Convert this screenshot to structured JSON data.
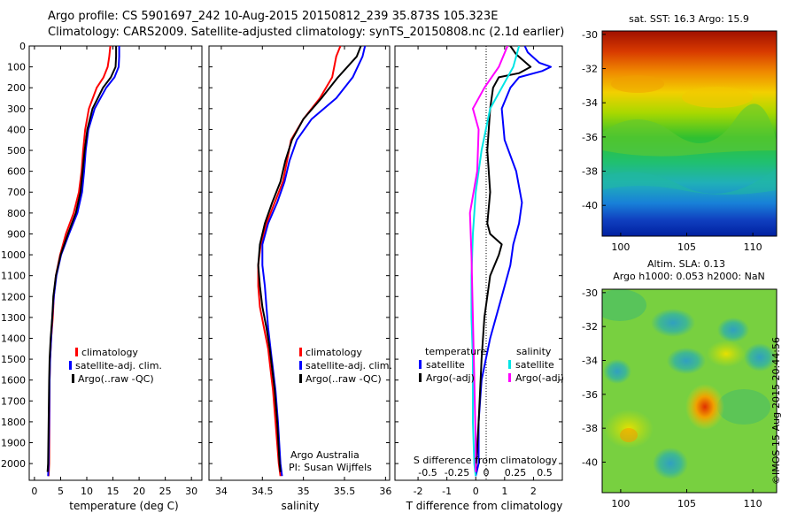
{
  "header": {
    "line1": "Argo profile: CS 5901697_242 10-Aug-2015 20150812_239 35.873S 105.323E",
    "line2": "Climatology: CARS2009. Satellite-adjusted climatology: synTS_20150808.nc (2.1d earlier)"
  },
  "credit": "©IMOS 15-Aug-2015 20:44:56",
  "colors": {
    "climatology": "#ff0000",
    "satellite": "#0000ff",
    "argo": "#000000",
    "sat_s": "#00e5e5",
    "argo_s": "#ff00ff"
  },
  "depth_ticks": [
    "0",
    "100",
    "200",
    "300",
    "400",
    "500",
    "600",
    "700",
    "800",
    "900",
    "1000",
    "1100",
    "1200",
    "1300",
    "1400",
    "1500",
    "1600",
    "1700",
    "1800",
    "1900",
    "2000"
  ],
  "panel_t": {
    "xlabel": "temperature (deg C)",
    "xticks": [
      "0",
      "5",
      "10",
      "15",
      "20",
      "25",
      "30"
    ],
    "legend": [
      "climatology",
      "satellite-adj. clim.",
      "Argo(..raw -QC)"
    ]
  },
  "panel_s": {
    "xlabel": "salinity",
    "xticks": [
      "34",
      "34.5",
      "35",
      "35.5",
      "36"
    ],
    "legend": [
      "climatology",
      "satellite-adj. clim.",
      "Argo(..raw -QC)"
    ],
    "note1": "Argo Australia",
    "note2": "PI: Susan Wijffels"
  },
  "panel_d": {
    "top_xticks": [
      "-0.5",
      "-0.25",
      "0",
      "0.25",
      "0.5"
    ],
    "top_label": "S difference from climatology",
    "xlabel": "T difference from climatology",
    "xticks": [
      "-2",
      "-1",
      "0",
      "1",
      "2"
    ],
    "leg_t_title": "temperature",
    "leg_s_title": "salinity",
    "leg_t": [
      "satellite",
      "Argo(-adj)"
    ],
    "leg_s": [
      "satellite",
      "Argo(-adj)"
    ]
  },
  "map_sst": {
    "title": "sat. SST: 16.3 Argo: 15.9",
    "yticks": [
      "-30",
      "-32",
      "-34",
      "-36",
      "-38",
      "-40"
    ],
    "xticks": [
      "100",
      "105",
      "110"
    ]
  },
  "map_sla": {
    "title1": "Altim. SLA: 0.13",
    "title2": "Argo h1000: 0.053 h2000: NaN",
    "yticks": [
      "-30",
      "-32",
      "-34",
      "-36",
      "-38",
      "-40"
    ],
    "xticks": [
      "100",
      "105",
      "110"
    ]
  },
  "chart_data": [
    {
      "type": "line",
      "ylabel": "",
      "xlabel": "temperature (deg C)",
      "xlim": [
        -1,
        32
      ],
      "ylim": [
        2080,
        0
      ],
      "series": [
        {
          "name": "climatology",
          "color": "#ff0000",
          "x": [
            14.5,
            14.3,
            14.0,
            13.2,
            11.9,
            10.4,
            9.7,
            9.3,
            9.0,
            8.5,
            7.5,
            6.0,
            4.9,
            4.1,
            3.7,
            3.5,
            3.2,
            3.0,
            2.9,
            2.85,
            2.8,
            2.7
          ],
          "y": [
            0,
            50,
            100,
            150,
            200,
            300,
            400,
            500,
            600,
            700,
            800,
            900,
            1000,
            1100,
            1200,
            1300,
            1400,
            1500,
            1600,
            1800,
            2000,
            2060
          ]
        },
        {
          "name": "satellite-adj. clim.",
          "color": "#0000ff",
          "x": [
            16.2,
            16.2,
            16.1,
            15.3,
            13.7,
            11.5,
            10.3,
            9.8,
            9.5,
            9.1,
            8.2,
            6.6,
            5.1,
            4.2,
            3.7,
            3.4,
            3.2,
            3.0,
            2.9,
            2.8,
            2.7,
            2.6
          ],
          "y": [
            0,
            50,
            100,
            150,
            200,
            300,
            400,
            500,
            600,
            700,
            800,
            900,
            1000,
            1100,
            1200,
            1300,
            1400,
            1500,
            1600,
            1800,
            2000,
            2060
          ]
        },
        {
          "name": "Argo(..raw -QC)",
          "color": "#000000",
          "x": [
            15.6,
            15.6,
            15.5,
            14.6,
            13.1,
            11.1,
            10.1,
            9.6,
            9.2,
            8.8,
            7.9,
            6.4,
            5.0,
            4.1,
            3.6,
            3.4,
            3.1,
            2.9,
            2.8,
            2.7,
            2.6,
            2.5
          ],
          "y": [
            0,
            50,
            100,
            150,
            200,
            300,
            400,
            500,
            600,
            700,
            800,
            900,
            1000,
            1100,
            1200,
            1300,
            1400,
            1500,
            1600,
            1800,
            2000,
            2040
          ]
        }
      ]
    },
    {
      "type": "line",
      "xlabel": "salinity",
      "xlim": [
        33.85,
        36.05
      ],
      "ylim": [
        2080,
        0
      ],
      "series": [
        {
          "name": "climatology",
          "color": "#ff0000",
          "x": [
            35.45,
            35.4,
            35.35,
            35.2,
            35.0,
            34.85,
            34.8,
            34.75,
            34.65,
            34.55,
            34.48,
            34.45,
            34.45,
            34.47,
            34.52,
            34.57,
            34.6,
            34.63,
            34.66,
            34.7,
            34.72
          ],
          "y": [
            0,
            50,
            150,
            250,
            350,
            450,
            550,
            650,
            750,
            850,
            950,
            1050,
            1150,
            1250,
            1350,
            1450,
            1550,
            1650,
            1800,
            2000,
            2060
          ]
        },
        {
          "name": "satellite-adj. clim.",
          "color": "#0000ff",
          "x": [
            35.75,
            35.72,
            35.6,
            35.4,
            35.1,
            34.92,
            34.83,
            34.77,
            34.68,
            34.57,
            34.5,
            34.5,
            34.53,
            34.55,
            34.57,
            34.6,
            34.63,
            34.66,
            34.69,
            34.72,
            34.74
          ],
          "y": [
            0,
            50,
            150,
            250,
            350,
            450,
            550,
            650,
            750,
            850,
            950,
            1050,
            1150,
            1250,
            1350,
            1450,
            1550,
            1650,
            1800,
            2000,
            2060
          ]
        },
        {
          "name": "Argo(..raw -QC)",
          "color": "#000000",
          "x": [
            35.7,
            35.65,
            35.42,
            35.22,
            35.0,
            34.86,
            34.78,
            34.72,
            34.62,
            34.53,
            34.47,
            34.45,
            34.47,
            34.5,
            34.55,
            34.59,
            34.62,
            34.65,
            34.68,
            34.71,
            34.72
          ],
          "y": [
            0,
            50,
            150,
            250,
            350,
            450,
            550,
            650,
            750,
            850,
            950,
            1050,
            1150,
            1250,
            1350,
            1450,
            1550,
            1650,
            1800,
            2000,
            2040
          ]
        }
      ]
    },
    {
      "type": "line",
      "xlabel": "T difference from climatology",
      "x2label": "S difference from climatology",
      "xlim": [
        -2.8,
        3.0
      ],
      "ylim": [
        2080,
        0
      ],
      "series": [
        {
          "name": "satellite (temperature)",
          "color": "#0000ff",
          "x": [
            1.7,
            1.8,
            2.2,
            2.6,
            2.3,
            1.5,
            1.2,
            0.9,
            1.0,
            1.4,
            1.6,
            1.5,
            1.3,
            1.2,
            0.9,
            0.5,
            0.2,
            0.1,
            0.1,
            0.0
          ],
          "y": [
            0,
            30,
            80,
            100,
            120,
            150,
            200,
            300,
            450,
            600,
            750,
            850,
            950,
            1050,
            1200,
            1400,
            1600,
            1800,
            2000,
            2060
          ]
        },
        {
          "name": "Argo(-adj) (temperature)",
          "color": "#000000",
          "x": [
            1.2,
            1.4,
            1.9,
            1.5,
            0.8,
            0.6,
            0.5,
            0.4,
            0.5,
            0.4,
            0.5,
            0.9,
            0.8,
            0.5,
            0.3,
            0.2,
            0.1,
            0.0
          ],
          "y": [
            0,
            40,
            100,
            130,
            150,
            200,
            300,
            500,
            700,
            850,
            900,
            950,
            1000,
            1100,
            1300,
            1500,
            1800,
            2040
          ]
        },
        {
          "name": "satellite (salinity)",
          "color": "#00e5e5",
          "x": [
            1.5,
            1.4,
            1.3,
            0.9,
            0.5,
            0.2,
            0.0,
            -0.1,
            -0.15,
            -0.15,
            -0.1,
            -0.1,
            -0.1,
            -0.05,
            0.0
          ],
          "y": [
            0,
            50,
            100,
            200,
            300,
            500,
            700,
            900,
            1100,
            1300,
            1500,
            1600,
            1800,
            2000,
            2060
          ]
        },
        {
          "name": "Argo(-adj) (salinity)",
          "color": "#ff00ff",
          "x": [
            1.1,
            0.8,
            0.3,
            -0.1,
            0.1,
            0.05,
            -0.2,
            -0.15,
            -0.1,
            -0.05,
            0.0,
            0.0
          ],
          "y": [
            0,
            100,
            200,
            300,
            400,
            600,
            800,
            1000,
            1300,
            1600,
            1900,
            2040
          ]
        }
      ]
    }
  ]
}
